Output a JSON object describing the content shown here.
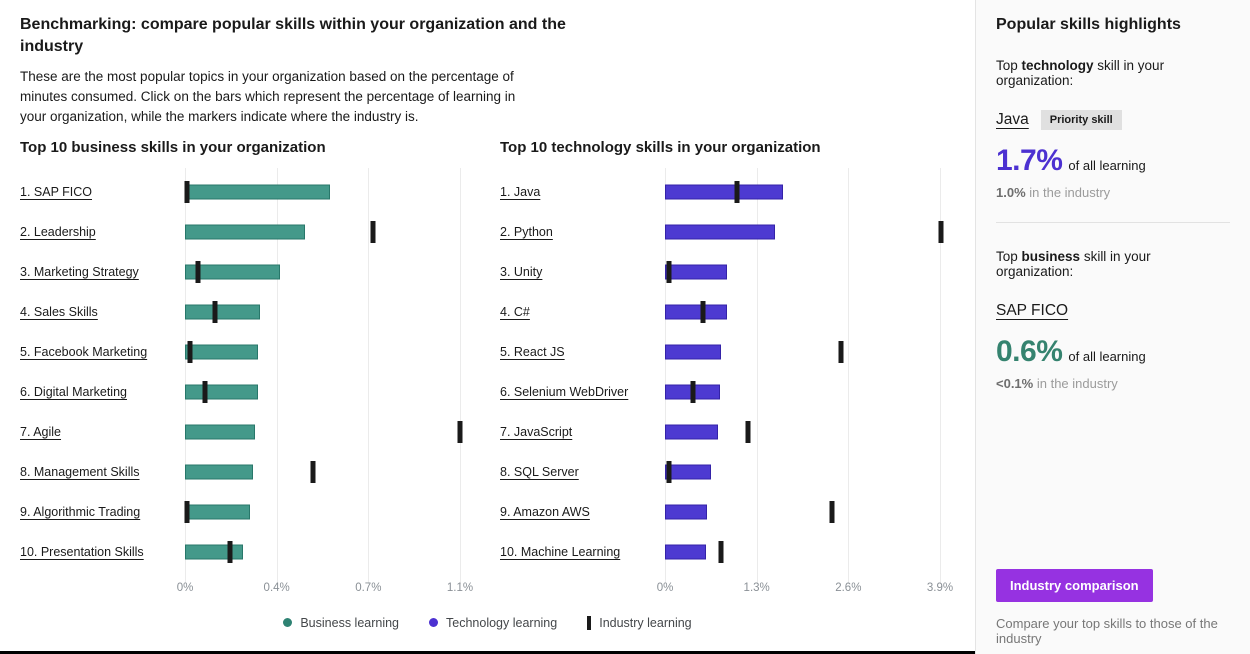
{
  "header": {
    "title": "Benchmarking: compare popular skills within your organization and the industry",
    "description": "These are the most popular topics in your organization based on the percentage of minutes consumed. Click on the bars which represent the percentage of learning in your organization, while the markers indicate where the industry is."
  },
  "chart_data": [
    {
      "type": "bar",
      "orientation": "horizontal",
      "title": "Top 10 business skills in your organization",
      "categories": [
        "1. SAP FICO",
        "2. Leadership",
        "3. Marketing Strategy",
        "4. Sales Skills",
        "5. Facebook Marketing",
        "6. Digital Marketing",
        "7. Agile",
        "8. Management Skills",
        "9. Algorithmic Trading",
        "10. Presentation Skills"
      ],
      "series": [
        {
          "name": "Business learning (% of all learning minutes)",
          "style": "bar",
          "values": [
            0.58,
            0.48,
            0.38,
            0.3,
            0.29,
            0.29,
            0.28,
            0.27,
            0.26,
            0.23
          ]
        },
        {
          "name": "Industry learning (% of all learning minutes)",
          "style": "marker",
          "values": [
            0.01,
            0.75,
            0.05,
            0.12,
            0.02,
            0.08,
            1.1,
            0.51,
            0.01,
            0.18
          ]
        }
      ],
      "xlabel": "",
      "xlim": [
        0,
        1.1
      ],
      "xticks": [
        "0%",
        "0.4%",
        "0.7%",
        "1.1%"
      ],
      "grid": true,
      "bar_color": "#44998a",
      "marker_color": "#1a1a1a"
    },
    {
      "type": "bar",
      "orientation": "horizontal",
      "title": "Top 10 technology skills in your organization",
      "categories": [
        "1. Java",
        "2. Python",
        "3. Unity",
        "4. C#",
        "5. React JS",
        "6. Selenium WebDriver",
        "7. JavaScript",
        "8. SQL Server",
        "9. Amazon AWS",
        "10. Machine Learning"
      ],
      "series": [
        {
          "name": "Technology learning (% of all learning minutes)",
          "style": "bar",
          "values": [
            1.67,
            1.56,
            0.88,
            0.88,
            0.79,
            0.78,
            0.75,
            0.65,
            0.6,
            0.58
          ]
        },
        {
          "name": "Industry learning (% of all learning minutes)",
          "style": "marker",
          "values": [
            1.02,
            3.92,
            0.06,
            0.54,
            2.5,
            0.4,
            1.18,
            0.06,
            2.37,
            0.79
          ]
        }
      ],
      "xlabel": "",
      "xlim": [
        0,
        3.9
      ],
      "xticks": [
        "0%",
        "1.3%",
        "2.6%",
        "3.9%"
      ],
      "grid": true,
      "bar_color": "#4d3ad1",
      "marker_color": "#1a1a1a"
    }
  ],
  "legend": {
    "position": "bottom-center",
    "items": [
      {
        "label": "Business learning",
        "swatch": "dot",
        "color": "#2e8273"
      },
      {
        "label": "Technology learning",
        "swatch": "dot",
        "color": "#4c31d1"
      },
      {
        "label": "Industry learning",
        "swatch": "vertical-bar",
        "color": "#1a1a1a"
      }
    ]
  },
  "sidebar": {
    "title": "Popular skills highlights",
    "highlights": [
      {
        "prefix": "Top ",
        "emphasis": "technology",
        "suffix": " skill in your organization:",
        "skill": "Java",
        "badge": "Priority skill",
        "value": "1.7%",
        "value_suffix": "of all learning",
        "industry_value": "1.0%",
        "industry_suffix": " in the industry",
        "accent_color": "#4c31d1"
      },
      {
        "prefix": "Top ",
        "emphasis": "business",
        "suffix": " skill in your organization:",
        "skill": "SAP FICO",
        "badge": null,
        "value": "0.6%",
        "value_suffix": "of all learning",
        "industry_value": "<0.1%",
        "industry_suffix": " in the industry",
        "accent_color": "#35836f"
      }
    ],
    "button_label": "Industry comparison",
    "footer_text": "Compare your top skills to those of the industry"
  }
}
